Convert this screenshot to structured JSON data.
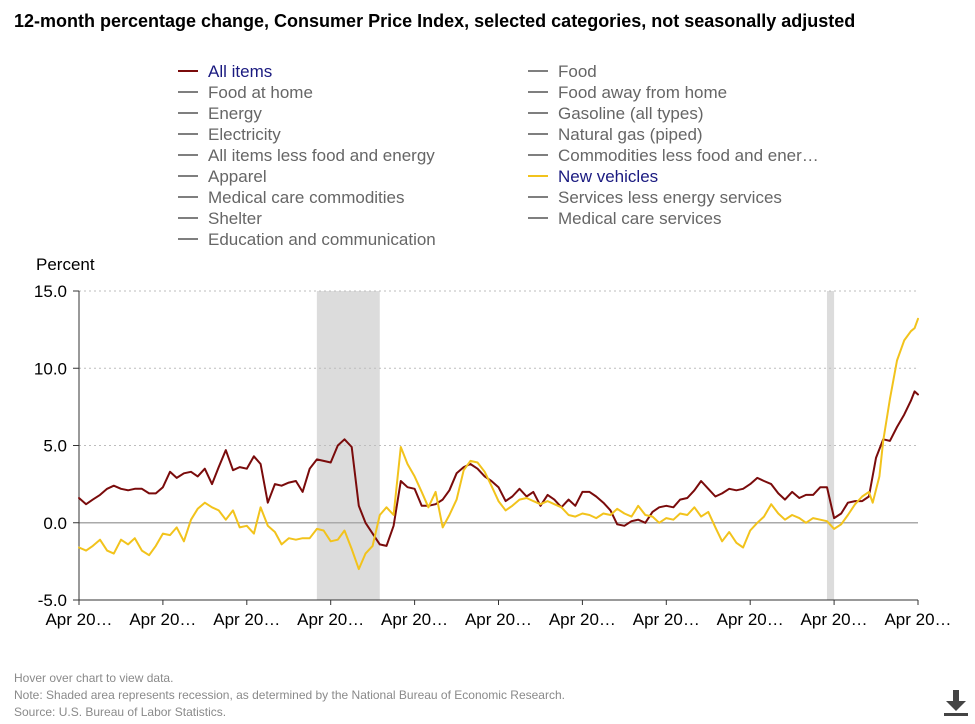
{
  "chart_data": {
    "type": "line",
    "title": "12-month percentage change, Consumer Price Index, selected categories, not seasonally adjusted",
    "ylabel": "Percent",
    "ylim": [
      -5.0,
      15.0
    ],
    "yticks": [
      "15.0",
      "10.0",
      "5.0",
      "0.0",
      "-5.0"
    ],
    "ytick_values": [
      15,
      10,
      5,
      0,
      -5
    ],
    "xlim": [
      2002.25,
      2022.25
    ],
    "xtick_labels": [
      "Apr 20…",
      "Apr 20…",
      "Apr 20…",
      "Apr 20…",
      "Apr 20…",
      "Apr 20…",
      "Apr 20…",
      "Apr 20…",
      "Apr 20…",
      "Apr 20…",
      "Apr 20…"
    ],
    "xtick_values": [
      2002.25,
      2004.25,
      2006.25,
      2008.25,
      2010.25,
      2012.25,
      2014.25,
      2016.25,
      2018.25,
      2020.25,
      2022.25
    ],
    "recessions": [
      [
        2007.92,
        2009.42
      ],
      [
        2020.08,
        2020.25
      ]
    ],
    "grid": "horizontal-dotted",
    "legend": [
      {
        "label": "All items",
        "active": true,
        "color": "#7a0b0b"
      },
      {
        "label": "Food",
        "active": false,
        "color": "#7f7f7f"
      },
      {
        "label": "Food at home",
        "active": false,
        "color": "#7f7f7f"
      },
      {
        "label": "Food away from home",
        "active": false,
        "color": "#7f7f7f"
      },
      {
        "label": "Energy",
        "active": false,
        "color": "#7f7f7f"
      },
      {
        "label": "Gasoline (all types)",
        "active": false,
        "color": "#7f7f7f"
      },
      {
        "label": "Electricity",
        "active": false,
        "color": "#7f7f7f"
      },
      {
        "label": "Natural gas (piped)",
        "active": false,
        "color": "#7f7f7f"
      },
      {
        "label": "All items less food and energy",
        "active": false,
        "color": "#7f7f7f"
      },
      {
        "label": "Commodities less food and ener…",
        "active": false,
        "color": "#7f7f7f"
      },
      {
        "label": "Apparel",
        "active": false,
        "color": "#7f7f7f"
      },
      {
        "label": "New vehicles",
        "active": true,
        "color": "#f2c31c"
      },
      {
        "label": "Medical care commodities",
        "active": false,
        "color": "#7f7f7f"
      },
      {
        "label": "Services less energy services",
        "active": false,
        "color": "#7f7f7f"
      },
      {
        "label": "Shelter",
        "active": false,
        "color": "#7f7f7f"
      },
      {
        "label": "Medical care services",
        "active": false,
        "color": "#7f7f7f"
      },
      {
        "label": "Education and communication",
        "active": false,
        "color": "#7f7f7f"
      }
    ],
    "series": [
      {
        "name": "All items",
        "color": "#7a0b0b",
        "points": [
          [
            2002.25,
            1.6
          ],
          [
            2002.42,
            1.2
          ],
          [
            2002.58,
            1.5
          ],
          [
            2002.75,
            1.8
          ],
          [
            2002.92,
            2.2
          ],
          [
            2003.08,
            2.4
          ],
          [
            2003.25,
            2.2
          ],
          [
            2003.42,
            2.1
          ],
          [
            2003.58,
            2.2
          ],
          [
            2003.75,
            2.2
          ],
          [
            2003.92,
            1.9
          ],
          [
            2004.08,
            1.9
          ],
          [
            2004.25,
            2.3
          ],
          [
            2004.42,
            3.3
          ],
          [
            2004.58,
            2.9
          ],
          [
            2004.75,
            3.2
          ],
          [
            2004.92,
            3.3
          ],
          [
            2005.08,
            3.0
          ],
          [
            2005.25,
            3.5
          ],
          [
            2005.42,
            2.5
          ],
          [
            2005.58,
            3.6
          ],
          [
            2005.75,
            4.7
          ],
          [
            2005.92,
            3.4
          ],
          [
            2006.08,
            3.6
          ],
          [
            2006.25,
            3.5
          ],
          [
            2006.42,
            4.3
          ],
          [
            2006.58,
            3.8
          ],
          [
            2006.75,
            1.3
          ],
          [
            2006.92,
            2.5
          ],
          [
            2007.08,
            2.4
          ],
          [
            2007.25,
            2.6
          ],
          [
            2007.42,
            2.7
          ],
          [
            2007.58,
            2.0
          ],
          [
            2007.75,
            3.5
          ],
          [
            2007.92,
            4.1
          ],
          [
            2008.08,
            4.0
          ],
          [
            2008.25,
            3.9
          ],
          [
            2008.42,
            5.0
          ],
          [
            2008.58,
            5.4
          ],
          [
            2008.75,
            4.9
          ],
          [
            2008.92,
            1.1
          ],
          [
            2009.08,
            0.0
          ],
          [
            2009.25,
            -0.7
          ],
          [
            2009.42,
            -1.4
          ],
          [
            2009.58,
            -1.5
          ],
          [
            2009.75,
            -0.2
          ],
          [
            2009.92,
            2.7
          ],
          [
            2010.08,
            2.3
          ],
          [
            2010.25,
            2.2
          ],
          [
            2010.42,
            1.1
          ],
          [
            2010.58,
            1.1
          ],
          [
            2010.75,
            1.2
          ],
          [
            2010.92,
            1.5
          ],
          [
            2011.08,
            2.1
          ],
          [
            2011.25,
            3.2
          ],
          [
            2011.42,
            3.6
          ],
          [
            2011.58,
            3.8
          ],
          [
            2011.75,
            3.5
          ],
          [
            2011.92,
            3.0
          ],
          [
            2012.08,
            2.7
          ],
          [
            2012.25,
            2.3
          ],
          [
            2012.42,
            1.4
          ],
          [
            2012.58,
            1.7
          ],
          [
            2012.75,
            2.2
          ],
          [
            2012.92,
            1.7
          ],
          [
            2013.08,
            2.0
          ],
          [
            2013.25,
            1.1
          ],
          [
            2013.42,
            1.8
          ],
          [
            2013.58,
            1.5
          ],
          [
            2013.75,
            1.0
          ],
          [
            2013.92,
            1.5
          ],
          [
            2014.08,
            1.1
          ],
          [
            2014.25,
            2.0
          ],
          [
            2014.42,
            2.0
          ],
          [
            2014.58,
            1.7
          ],
          [
            2014.75,
            1.3
          ],
          [
            2014.92,
            0.8
          ],
          [
            2015.08,
            -0.1
          ],
          [
            2015.25,
            -0.2
          ],
          [
            2015.42,
            0.1
          ],
          [
            2015.58,
            0.2
          ],
          [
            2015.75,
            0.0
          ],
          [
            2015.92,
            0.7
          ],
          [
            2016.08,
            1.0
          ],
          [
            2016.25,
            1.1
          ],
          [
            2016.42,
            1.0
          ],
          [
            2016.58,
            1.5
          ],
          [
            2016.75,
            1.6
          ],
          [
            2016.92,
            2.1
          ],
          [
            2017.08,
            2.7
          ],
          [
            2017.25,
            2.2
          ],
          [
            2017.42,
            1.7
          ],
          [
            2017.58,
            1.9
          ],
          [
            2017.75,
            2.2
          ],
          [
            2017.92,
            2.1
          ],
          [
            2018.08,
            2.2
          ],
          [
            2018.25,
            2.5
          ],
          [
            2018.42,
            2.9
          ],
          [
            2018.58,
            2.7
          ],
          [
            2018.75,
            2.5
          ],
          [
            2018.92,
            1.9
          ],
          [
            2019.08,
            1.5
          ],
          [
            2019.25,
            2.0
          ],
          [
            2019.42,
            1.6
          ],
          [
            2019.58,
            1.8
          ],
          [
            2019.75,
            1.8
          ],
          [
            2019.92,
            2.3
          ],
          [
            2020.08,
            2.3
          ],
          [
            2020.25,
            0.3
          ],
          [
            2020.42,
            0.6
          ],
          [
            2020.58,
            1.3
          ],
          [
            2020.75,
            1.4
          ],
          [
            2020.92,
            1.4
          ],
          [
            2021.08,
            1.7
          ],
          [
            2021.25,
            4.2
          ],
          [
            2021.42,
            5.4
          ],
          [
            2021.58,
            5.3
          ],
          [
            2021.75,
            6.2
          ],
          [
            2021.92,
            7.0
          ],
          [
            2022.08,
            7.9
          ],
          [
            2022.17,
            8.5
          ],
          [
            2022.25,
            8.3
          ]
        ]
      },
      {
        "name": "New vehicles",
        "color": "#f2c31c",
        "points": [
          [
            2002.25,
            -1.6
          ],
          [
            2002.42,
            -1.8
          ],
          [
            2002.58,
            -1.5
          ],
          [
            2002.75,
            -1.1
          ],
          [
            2002.92,
            -1.8
          ],
          [
            2003.08,
            -2.0
          ],
          [
            2003.25,
            -1.1
          ],
          [
            2003.42,
            -1.4
          ],
          [
            2003.58,
            -1.0
          ],
          [
            2003.75,
            -1.8
          ],
          [
            2003.92,
            -2.1
          ],
          [
            2004.08,
            -1.5
          ],
          [
            2004.25,
            -0.7
          ],
          [
            2004.42,
            -0.8
          ],
          [
            2004.58,
            -0.3
          ],
          [
            2004.75,
            -1.2
          ],
          [
            2004.92,
            0.2
          ],
          [
            2005.08,
            0.9
          ],
          [
            2005.25,
            1.3
          ],
          [
            2005.42,
            1.0
          ],
          [
            2005.58,
            0.8
          ],
          [
            2005.75,
            0.2
          ],
          [
            2005.92,
            0.8
          ],
          [
            2006.08,
            -0.3
          ],
          [
            2006.25,
            -0.2
          ],
          [
            2006.42,
            -0.7
          ],
          [
            2006.58,
            1.0
          ],
          [
            2006.75,
            -0.2
          ],
          [
            2006.92,
            -0.6
          ],
          [
            2007.08,
            -1.4
          ],
          [
            2007.25,
            -1.0
          ],
          [
            2007.42,
            -1.1
          ],
          [
            2007.58,
            -1.0
          ],
          [
            2007.75,
            -1.0
          ],
          [
            2007.92,
            -0.4
          ],
          [
            2008.08,
            -0.5
          ],
          [
            2008.25,
            -1.2
          ],
          [
            2008.42,
            -1.1
          ],
          [
            2008.58,
            -0.5
          ],
          [
            2008.75,
            -1.7
          ],
          [
            2008.92,
            -3.0
          ],
          [
            2009.08,
            -2.0
          ],
          [
            2009.25,
            -1.5
          ],
          [
            2009.42,
            0.5
          ],
          [
            2009.58,
            1.0
          ],
          [
            2009.75,
            0.5
          ],
          [
            2009.92,
            4.9
          ],
          [
            2010.08,
            3.8
          ],
          [
            2010.25,
            3.0
          ],
          [
            2010.42,
            2.0
          ],
          [
            2010.58,
            1.0
          ],
          [
            2010.75,
            2.0
          ],
          [
            2010.92,
            -0.3
          ],
          [
            2011.08,
            0.5
          ],
          [
            2011.25,
            1.5
          ],
          [
            2011.42,
            3.4
          ],
          [
            2011.58,
            4.0
          ],
          [
            2011.75,
            3.9
          ],
          [
            2011.92,
            3.3
          ],
          [
            2012.08,
            2.4
          ],
          [
            2012.25,
            1.4
          ],
          [
            2012.42,
            0.8
          ],
          [
            2012.58,
            1.1
          ],
          [
            2012.75,
            1.5
          ],
          [
            2012.92,
            1.6
          ],
          [
            2013.08,
            1.4
          ],
          [
            2013.25,
            1.2
          ],
          [
            2013.42,
            1.4
          ],
          [
            2013.58,
            1.2
          ],
          [
            2013.75,
            1.0
          ],
          [
            2013.92,
            0.5
          ],
          [
            2014.08,
            0.4
          ],
          [
            2014.25,
            0.6
          ],
          [
            2014.42,
            0.5
          ],
          [
            2014.58,
            0.3
          ],
          [
            2014.75,
            0.6
          ],
          [
            2014.92,
            0.5
          ],
          [
            2015.08,
            0.9
          ],
          [
            2015.25,
            0.6
          ],
          [
            2015.42,
            0.4
          ],
          [
            2015.58,
            1.1
          ],
          [
            2015.75,
            0.5
          ],
          [
            2015.92,
            0.4
          ],
          [
            2016.08,
            0.0
          ],
          [
            2016.25,
            0.3
          ],
          [
            2016.42,
            0.2
          ],
          [
            2016.58,
            0.6
          ],
          [
            2016.75,
            0.5
          ],
          [
            2016.92,
            1.0
          ],
          [
            2017.08,
            0.4
          ],
          [
            2017.25,
            0.7
          ],
          [
            2017.42,
            -0.3
          ],
          [
            2017.58,
            -1.2
          ],
          [
            2017.75,
            -0.6
          ],
          [
            2017.92,
            -1.3
          ],
          [
            2018.08,
            -1.6
          ],
          [
            2018.25,
            -0.5
          ],
          [
            2018.42,
            0.0
          ],
          [
            2018.58,
            0.4
          ],
          [
            2018.75,
            1.2
          ],
          [
            2018.92,
            0.6
          ],
          [
            2019.08,
            0.2
          ],
          [
            2019.25,
            0.5
          ],
          [
            2019.42,
            0.3
          ],
          [
            2019.58,
            0.0
          ],
          [
            2019.75,
            0.3
          ],
          [
            2019.92,
            0.2
          ],
          [
            2020.08,
            0.1
          ],
          [
            2020.25,
            -0.4
          ],
          [
            2020.42,
            -0.1
          ],
          [
            2020.58,
            0.5
          ],
          [
            2020.75,
            1.2
          ],
          [
            2020.92,
            1.7
          ],
          [
            2021.08,
            2.0
          ],
          [
            2021.17,
            1.3
          ],
          [
            2021.33,
            3.0
          ],
          [
            2021.42,
            5.3
          ],
          [
            2021.58,
            8.0
          ],
          [
            2021.75,
            10.5
          ],
          [
            2021.92,
            11.8
          ],
          [
            2022.08,
            12.4
          ],
          [
            2022.17,
            12.6
          ],
          [
            2022.25,
            13.2
          ]
        ]
      }
    ]
  },
  "footer": {
    "hover_note": "Hover over chart to view data.",
    "recession_note": "Note: Shaded area represents recession, as determined by the National Bureau of Economic Research.",
    "source": "Source: U.S. Bureau of Labor Statistics."
  },
  "download_icon": "download-icon"
}
